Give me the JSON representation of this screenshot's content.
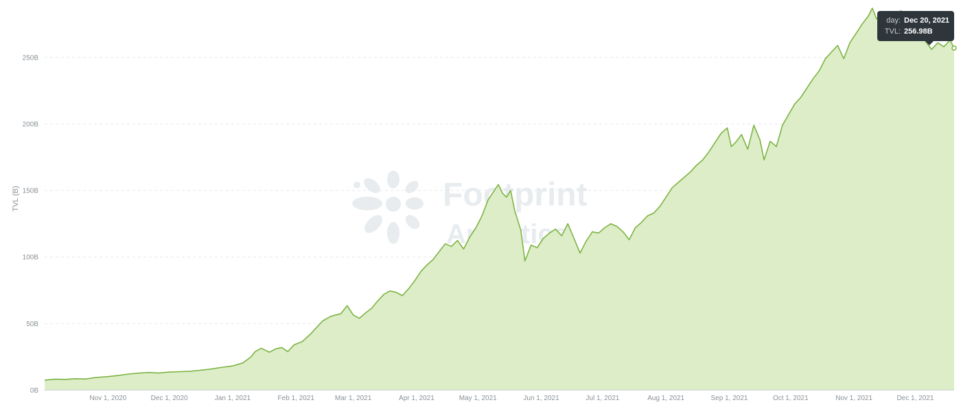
{
  "chart_data": {
    "type": "area",
    "ylabel": "TVL (B)",
    "yticks": [
      "0B",
      "50B",
      "100B",
      "150B",
      "200B",
      "250B"
    ],
    "ylim": [
      0,
      290
    ],
    "xticks": [
      "Nov 1, 2020",
      "Dec 1, 2020",
      "Jan 1, 2021",
      "Feb 1, 2021",
      "Mar 1, 2021",
      "Apr 1, 2021",
      "May 1, 2021",
      "Jun 1, 2021",
      "Jul 1, 2021",
      "Aug 1, 2021",
      "Sep 1, 2021",
      "Oct 1, 2021",
      "Nov 1, 2021",
      "Dec 1, 2021"
    ],
    "xtick_days": [
      31,
      61,
      92,
      123,
      151,
      182,
      212,
      243,
      273,
      304,
      335,
      365,
      396,
      426
    ],
    "x_unit": "days since Oct 1, 2020",
    "grid": true,
    "series": [
      {
        "name": "TVL",
        "color": "#7cb342",
        "fill": "#dcedc8",
        "x": [
          0,
          5,
          10,
          15,
          20,
          25,
          31,
          36,
          41,
          46,
          51,
          56,
          61,
          66,
          71,
          76,
          81,
          86,
          92,
          97,
          101,
          103,
          106,
          110,
          113,
          116,
          119,
          122,
          126,
          130,
          133,
          136,
          140,
          145,
          148,
          151,
          154,
          157,
          160,
          163,
          166,
          169,
          172,
          175,
          178,
          181,
          184,
          187,
          190,
          193,
          196,
          199,
          202,
          205,
          208,
          211,
          214,
          217,
          220,
          222,
          224,
          226,
          228,
          230,
          233,
          235,
          238,
          241,
          244,
          247,
          250,
          253,
          256,
          259,
          262,
          265,
          268,
          271,
          274,
          277,
          280,
          283,
          286,
          289,
          292,
          295,
          298,
          301,
          304,
          307,
          310,
          313,
          316,
          319,
          322,
          325,
          328,
          331,
          334,
          336,
          338,
          341,
          344,
          347,
          350,
          352,
          355,
          358,
          361,
          364,
          367,
          370,
          373,
          376,
          379,
          382,
          385,
          388,
          391,
          394,
          397,
          400,
          403,
          405,
          407,
          410,
          413,
          416,
          419,
          422,
          425,
          428,
          431,
          434,
          437,
          440,
          443,
          445
        ],
        "y": [
          7.5,
          8.3,
          8.1,
          8.6,
          8.4,
          9.5,
          10.2,
          11.0,
          12.1,
          12.8,
          13.3,
          12.9,
          13.6,
          13.9,
          14.2,
          14.9,
          15.8,
          17.0,
          18.2,
          20.5,
          25.0,
          29.0,
          31.5,
          28.5,
          31.0,
          32.0,
          29.0,
          34.0,
          36.5,
          42.0,
          47.0,
          52.0,
          55.5,
          57.5,
          63.5,
          56.5,
          54.0,
          58.0,
          61.5,
          67.0,
          72.0,
          74.5,
          73.5,
          71.0,
          76.0,
          82.0,
          89.0,
          94.0,
          98.0,
          104.0,
          110.0,
          108.0,
          112.5,
          106.0,
          115.0,
          122.0,
          131.0,
          143.0,
          150.0,
          154.5,
          148.0,
          145.0,
          150.0,
          135.0,
          120.0,
          97.0,
          109.0,
          107.0,
          114.0,
          118.0,
          121.0,
          116.0,
          125.0,
          114.0,
          103.0,
          112.0,
          119.0,
          118.0,
          122.0,
          125.0,
          123.0,
          119.0,
          113.0,
          122.0,
          126.0,
          131.0,
          133.0,
          138.0,
          145.0,
          152.0,
          156.0,
          160.0,
          164.0,
          169.0,
          173.0,
          179.0,
          186.0,
          193.0,
          197.0,
          183.0,
          186.0,
          192.0,
          181.0,
          199.0,
          188.0,
          173.0,
          187.0,
          183.0,
          199.0,
          207.0,
          215.0,
          220.0,
          227.0,
          234.0,
          240.0,
          249.0,
          254.0,
          259.0,
          249.0,
          261.0,
          268.0,
          275.0,
          281.0,
          287.0,
          279.0,
          283.0,
          275.0,
          283.0,
          285.0,
          274.0,
          263.0,
          272.0,
          262.0,
          256.0,
          261.0,
          258.0,
          263.0,
          256.98
        ]
      }
    ],
    "highlight": {
      "x": 445,
      "y": 256.98
    }
  },
  "tooltip": {
    "day_label": "day:",
    "day_value": "Dec 20, 2021",
    "tvl_label": "TVL:",
    "tvl_value": "256.98B"
  },
  "watermark": {
    "line1": "Footprint",
    "line2": "Analytics"
  }
}
